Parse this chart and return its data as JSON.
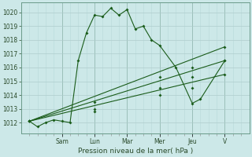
{
  "xlabel": "Pression niveau de la mer( hPa )",
  "bg_color": "#cce8e8",
  "grid_color": "#aacccc",
  "line_color": "#1a5c1a",
  "ylim": [
    1011.2,
    1020.7
  ],
  "yticks": [
    1012,
    1013,
    1014,
    1015,
    1016,
    1017,
    1018,
    1019,
    1020
  ],
  "day_labels": [
    "Sam",
    "Lun",
    "Mar",
    "Mer",
    "Jeu",
    "V"
  ],
  "day_positions": [
    2,
    4,
    6,
    8,
    10,
    12
  ],
  "minor_tick_positions": [
    0,
    0.5,
    1,
    1.5,
    2,
    2.5,
    3,
    3.5,
    4,
    4.5,
    5,
    5.5,
    6,
    6.5,
    7,
    7.5,
    8,
    8.5,
    9,
    9.5,
    10,
    10.5,
    11,
    11.5,
    12,
    12.5,
    13
  ],
  "xlim": [
    -0.5,
    13.5
  ],
  "series0_x": [
    0,
    0.5,
    1,
    1.5,
    2,
    2.5,
    3,
    3.5,
    4,
    4.5,
    5,
    5.5,
    6,
    6.5,
    7,
    7.5,
    8,
    9,
    10,
    10.5,
    12
  ],
  "series0_y": [
    1012.1,
    1011.7,
    1012.0,
    1012.2,
    1012.1,
    1012.0,
    1016.5,
    1018.5,
    1019.8,
    1019.7,
    1020.3,
    1019.8,
    1020.2,
    1018.8,
    1019.0,
    1018.0,
    1017.6,
    1016.0,
    1013.4,
    1013.7,
    1016.5
  ],
  "series1_x": [
    0,
    12
  ],
  "series1_y": [
    1012.1,
    1017.5
  ],
  "series2_x": [
    0,
    12
  ],
  "series2_y": [
    1012.1,
    1016.5
  ],
  "series3_x": [
    0,
    12
  ],
  "series3_y": [
    1012.1,
    1015.5
  ],
  "marker_s0": [
    [
      0,
      0.5,
      1,
      1.5,
      2,
      2.5,
      3,
      3.5,
      4,
      4.5,
      5,
      5.5,
      6,
      6.5,
      7,
      7.5,
      8,
      9,
      10,
      10.5,
      12
    ],
    [
      1012.1,
      1011.7,
      1012.0,
      1012.2,
      1012.1,
      1012.0,
      1016.5,
      1018.5,
      1019.8,
      1019.7,
      1020.3,
      1019.8,
      1020.2,
      1018.8,
      1019.0,
      1018.0,
      1017.6,
      1016.0,
      1013.4,
      1013.7,
      1016.5
    ]
  ],
  "marker_s1": [
    [
      0,
      4,
      8,
      10,
      12
    ],
    [
      1012.1,
      1013.5,
      1015.3,
      1016.0,
      1017.5
    ]
  ],
  "marker_s2": [
    [
      0,
      4,
      8,
      10,
      12
    ],
    [
      1012.1,
      1013.0,
      1014.5,
      1015.3,
      1016.5
    ]
  ],
  "marker_s3": [
    [
      0,
      4,
      8,
      10,
      12
    ],
    [
      1012.1,
      1012.8,
      1014.0,
      1014.5,
      1015.5
    ]
  ]
}
